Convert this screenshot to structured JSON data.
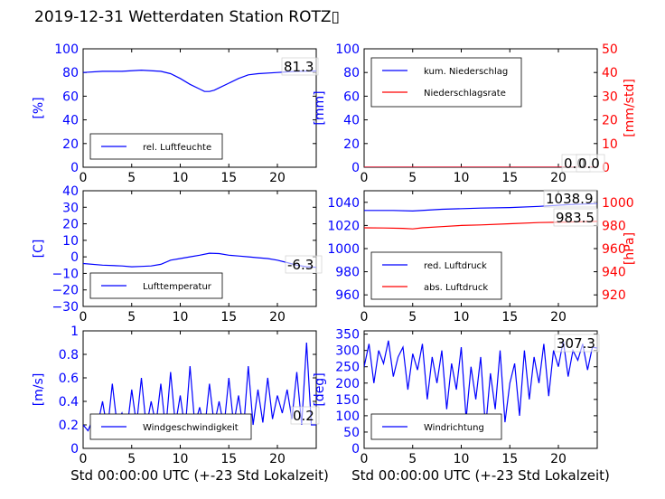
{
  "figure_title": "2019-12-31 Wetterdaten Station ROTZ▯",
  "colors": {
    "primary": "#0000ff",
    "secondary": "#ff0000",
    "axis": "#000000"
  },
  "chart_data": [
    {
      "id": "humidity",
      "type": "line",
      "ylabel": "[%]",
      "xlabel": "",
      "xlim": [
        0,
        24
      ],
      "ylim": [
        0,
        100
      ],
      "xticks": [
        0,
        5,
        10,
        15,
        20
      ],
      "yticks": [
        0,
        20,
        40,
        60,
        80,
        100
      ],
      "legend": {
        "placement": "lower-left",
        "entries": [
          "rel. Luftfeuchte"
        ]
      },
      "annotations": [
        "81.3"
      ],
      "series": [
        {
          "name": "rel. Luftfeuchte",
          "color": "#0000ff",
          "x": [
            0,
            2,
            4,
            6,
            8,
            9,
            10,
            11,
            12,
            12.5,
            13,
            13.5,
            14,
            15,
            16,
            17,
            18,
            20,
            22,
            24
          ],
          "y": [
            80,
            81,
            81,
            82,
            81,
            79,
            75,
            70,
            66,
            64,
            64,
            65,
            67,
            71,
            75,
            78,
            79,
            80,
            81,
            81.3
          ]
        }
      ]
    },
    {
      "id": "precipitation",
      "type": "line",
      "ylabel": "[mm]",
      "ylabel2": "[mm/std]",
      "xlabel": "",
      "xlim": [
        0,
        24
      ],
      "ylim": [
        0,
        100
      ],
      "ylim2": [
        0,
        50
      ],
      "xticks": [
        0,
        5,
        10,
        15,
        20
      ],
      "yticks": [
        0,
        20,
        40,
        60,
        80,
        100
      ],
      "yticks2": [
        0,
        10,
        20,
        30,
        40,
        50
      ],
      "legend": {
        "placement": "upper-left",
        "entries": [
          "kum. Niederschlag",
          "Niederschlagsrate"
        ]
      },
      "annotations": [
        "0.0",
        "0.0"
      ],
      "series": [
        {
          "name": "kum. Niederschlag",
          "axis": "left",
          "color": "#0000ff",
          "x": [
            0,
            24
          ],
          "y": [
            0,
            0
          ]
        },
        {
          "name": "Niederschlagsrate",
          "axis": "right",
          "color": "#ff0000",
          "x": [
            0,
            24
          ],
          "y": [
            0,
            0
          ]
        }
      ]
    },
    {
      "id": "temperature",
      "type": "line",
      "ylabel": "[C]",
      "xlabel": "",
      "xlim": [
        0,
        24
      ],
      "ylim": [
        -30,
        40
      ],
      "xticks": [
        0,
        5,
        10,
        15,
        20
      ],
      "yticks": [
        -30,
        -20,
        -10,
        0,
        10,
        20,
        30,
        40
      ],
      "legend": {
        "placement": "lower-left",
        "entries": [
          "Lufttemperatur"
        ]
      },
      "annotations": [
        "-6.3"
      ],
      "series": [
        {
          "name": "Lufttemperatur",
          "color": "#0000ff",
          "x": [
            0,
            2,
            4,
            5,
            6,
            7,
            8,
            9,
            10,
            11,
            12,
            13,
            14,
            15,
            16,
            17,
            18,
            19,
            20,
            21,
            22,
            23,
            24
          ],
          "y": [
            -4,
            -5,
            -5.5,
            -6,
            -5.8,
            -5.5,
            -4.5,
            -2,
            -1,
            0,
            1,
            2.2,
            2,
            1,
            0.5,
            0,
            -0.5,
            -1,
            -2,
            -3.5,
            -5,
            -6,
            -6.3
          ]
        }
      ]
    },
    {
      "id": "pressure",
      "type": "line",
      "ylabel": "",
      "ylabel2": "[hPa]",
      "xlabel": "",
      "xlim": [
        0,
        24
      ],
      "ylim": [
        950,
        1050
      ],
      "ylim2": [
        910,
        1010
      ],
      "xticks": [
        0,
        5,
        10,
        15,
        20
      ],
      "yticks": [
        960,
        980,
        1000,
        1020,
        1040
      ],
      "yticks2": [
        920,
        940,
        960,
        980,
        1000
      ],
      "legend": {
        "placement": "lower-left",
        "entries": [
          "red. Luftdruck",
          "abs. Luftdruck"
        ]
      },
      "annotations": [
        "1038.9",
        "983.5"
      ],
      "series": [
        {
          "name": "red. Luftdruck",
          "axis": "left",
          "color": "#0000ff",
          "x": [
            0,
            3,
            5,
            8,
            12,
            15,
            18,
            21,
            24
          ],
          "y": [
            1033,
            1033,
            1032.5,
            1034,
            1035,
            1035.5,
            1036.5,
            1038,
            1038.9
          ]
        },
        {
          "name": "abs. Luftdruck",
          "axis": "right",
          "color": "#ff0000",
          "x": [
            0,
            2,
            4,
            5,
            6,
            8,
            10,
            12,
            15,
            18,
            21,
            24
          ],
          "y": [
            978,
            977.8,
            977.5,
            977,
            978,
            979,
            980,
            980.5,
            981.5,
            982.5,
            983,
            983.5
          ]
        }
      ]
    },
    {
      "id": "wind_speed",
      "type": "line",
      "ylabel": "[m/s]",
      "xlabel": "Std 00:00:00 UTC (+-23 Std Lokalzeit)",
      "xlim": [
        0,
        24
      ],
      "ylim": [
        0,
        1.0
      ],
      "xticks": [
        0,
        5,
        10,
        15,
        20
      ],
      "yticks": [
        0.0,
        0.2,
        0.4,
        0.6,
        0.8,
        1.0
      ],
      "legend": {
        "placement": "lower-left",
        "entries": [
          "Windgeschwindigkeit"
        ]
      },
      "annotations": [
        "0.2"
      ],
      "series": [
        {
          "name": "Windgeschwindigkeit",
          "color": "#0000ff",
          "x": [
            0,
            0.5,
            1,
            1.5,
            2,
            2.5,
            3,
            3.5,
            4,
            4.5,
            5,
            5.5,
            6,
            6.5,
            7,
            7.5,
            8,
            8.5,
            9,
            9.5,
            10,
            10.5,
            11,
            11.5,
            12,
            12.5,
            13,
            13.5,
            14,
            14.5,
            15,
            15.5,
            16,
            16.5,
            17,
            17.5,
            18,
            18.5,
            19,
            19.5,
            20,
            20.5,
            21,
            21.5,
            22,
            22.5,
            23,
            23.5,
            24
          ],
          "y": [
            0.2,
            0.15,
            0.25,
            0.2,
            0.4,
            0.15,
            0.55,
            0.2,
            0.3,
            0.15,
            0.5,
            0.2,
            0.6,
            0.18,
            0.4,
            0.2,
            0.55,
            0.15,
            0.65,
            0.2,
            0.45,
            0.15,
            0.7,
            0.2,
            0.35,
            0.15,
            0.55,
            0.2,
            0.4,
            0.18,
            0.6,
            0.2,
            0.45,
            0.15,
            0.7,
            0.2,
            0.5,
            0.22,
            0.6,
            0.25,
            0.45,
            0.3,
            0.5,
            0.25,
            0.65,
            0.2,
            0.9,
            0.2,
            0.2
          ]
        }
      ]
    },
    {
      "id": "wind_direction",
      "type": "line",
      "ylabel": "[deg]",
      "xlabel": "Std 00:00:00 UTC (+-23 Std Lokalzeit)",
      "xlim": [
        0,
        24
      ],
      "ylim": [
        0,
        360
      ],
      "xticks": [
        0,
        5,
        10,
        15,
        20
      ],
      "yticks": [
        0,
        50,
        100,
        150,
        200,
        250,
        300,
        350
      ],
      "legend": {
        "placement": "lower-left",
        "entries": [
          "Windrichtung"
        ]
      },
      "annotations": [
        "307.3"
      ],
      "series": [
        {
          "name": "Windrichtung",
          "color": "#0000ff",
          "x": [
            0,
            0.5,
            1,
            1.5,
            2,
            2.5,
            3,
            3.5,
            4,
            4.5,
            5,
            5.5,
            6,
            6.5,
            7,
            7.5,
            8,
            8.5,
            9,
            9.5,
            10,
            10.5,
            11,
            11.5,
            12,
            12.5,
            13,
            13.5,
            14,
            14.5,
            15,
            15.5,
            16,
            16.5,
            17,
            17.5,
            18,
            18.5,
            19,
            19.5,
            20,
            20.5,
            21,
            21.5,
            22,
            22.5,
            23,
            23.5,
            24
          ],
          "y": [
            250,
            320,
            200,
            300,
            260,
            330,
            220,
            280,
            310,
            180,
            290,
            240,
            320,
            150,
            280,
            200,
            300,
            120,
            260,
            180,
            310,
            90,
            250,
            150,
            280,
            60,
            230,
            120,
            300,
            80,
            200,
            260,
            100,
            300,
            150,
            280,
            200,
            320,
            160,
            300,
            250,
            330,
            220,
            300,
            270,
            320,
            240,
            310,
            307.3
          ]
        }
      ]
    }
  ]
}
